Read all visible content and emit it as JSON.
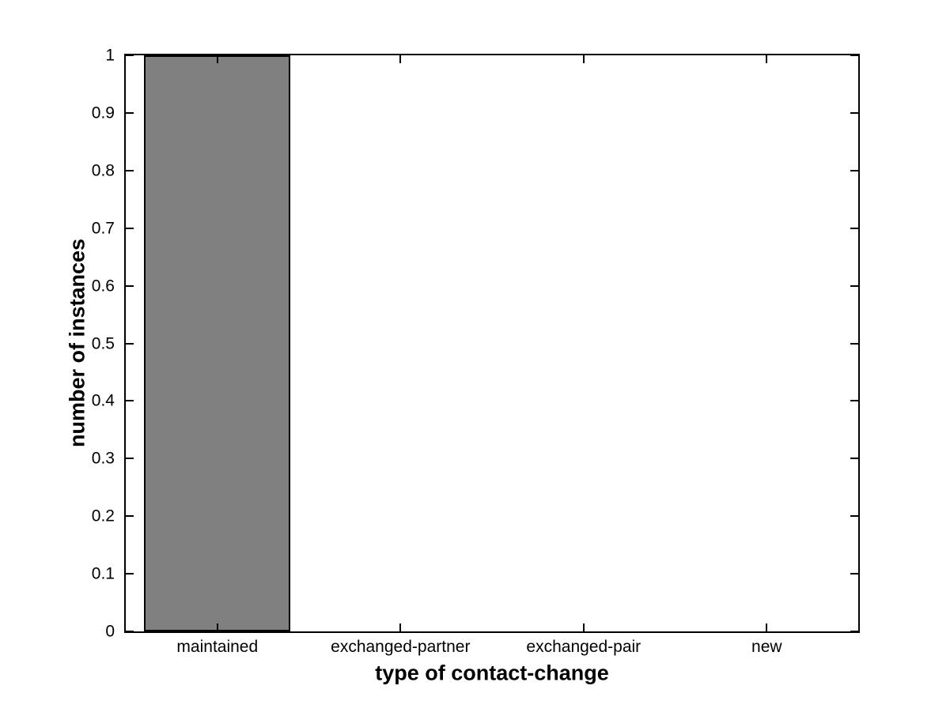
{
  "chart_data": {
    "type": "bar",
    "title": "",
    "categories": [
      "maintained",
      "exchanged-partner",
      "exchanged-pair",
      "new"
    ],
    "values": [
      1,
      0,
      0,
      0
    ],
    "xlabel": "type of contact-change",
    "ylabel": "number of instances",
    "ylim": [
      0,
      1
    ],
    "ytick_labels": [
      "0",
      "0.1",
      "0.2",
      "0.3",
      "0.4",
      "0.5",
      "0.6",
      "0.7",
      "0.8",
      "0.9",
      "1"
    ],
    "bar_width_fraction": 0.8,
    "bar_color": "#808080",
    "bar_edge_color": "#000000",
    "axis_color": "#000000",
    "background_color": "#ffffff",
    "grid": false,
    "legend": "none"
  }
}
